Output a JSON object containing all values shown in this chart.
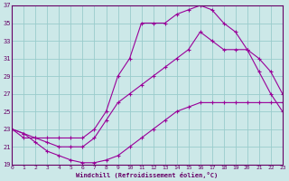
{
  "xlabel": "Windchill (Refroidissement éolien,°C)",
  "bg_color": "#cce8e8",
  "grid_color": "#99cccc",
  "line_color": "#990099",
  "xlim": [
    0,
    23
  ],
  "ylim": [
    19,
    37
  ],
  "xticks": [
    0,
    1,
    2,
    3,
    4,
    5,
    6,
    7,
    8,
    9,
    10,
    11,
    12,
    13,
    14,
    15,
    16,
    17,
    18,
    19,
    20,
    21,
    22,
    23
  ],
  "yticks": [
    19,
    21,
    23,
    25,
    27,
    29,
    31,
    33,
    35,
    37
  ],
  "line_upper_x": [
    0,
    1,
    2,
    3,
    4,
    5,
    6,
    7,
    8,
    9,
    10,
    11,
    12,
    13,
    14,
    15,
    16,
    17,
    18,
    19,
    20,
    21,
    22,
    23
  ],
  "line_upper_y": [
    23,
    22,
    22,
    22,
    22,
    22,
    22,
    23,
    25,
    29,
    31,
    35,
    35,
    35,
    36,
    36.5,
    37,
    36.5,
    35,
    34,
    32,
    29.5,
    27,
    25
  ],
  "line_mid_x": [
    0,
    1,
    2,
    3,
    4,
    5,
    6,
    7,
    8,
    9,
    10,
    11,
    12,
    13,
    14,
    15,
    16,
    17,
    18,
    19,
    20,
    21,
    22,
    23
  ],
  "line_mid_y": [
    23,
    22.5,
    22,
    21.5,
    21,
    21,
    21,
    22,
    24,
    26,
    27,
    28,
    29,
    30,
    31,
    32,
    34,
    33,
    32,
    32,
    32,
    31,
    29.5,
    27
  ],
  "line_lower_x": [
    0,
    1,
    2,
    3,
    4,
    5,
    6,
    7,
    8,
    9,
    10,
    11,
    12,
    13,
    14,
    15,
    16,
    17,
    18,
    19,
    20,
    21,
    22,
    23
  ],
  "line_lower_y": [
    23,
    22.5,
    21.5,
    20.5,
    20,
    19.5,
    19.2,
    19.2,
    19.5,
    20,
    21,
    22,
    23,
    24,
    25,
    25.5,
    26,
    26,
    26,
    26,
    26,
    26,
    26,
    26
  ]
}
